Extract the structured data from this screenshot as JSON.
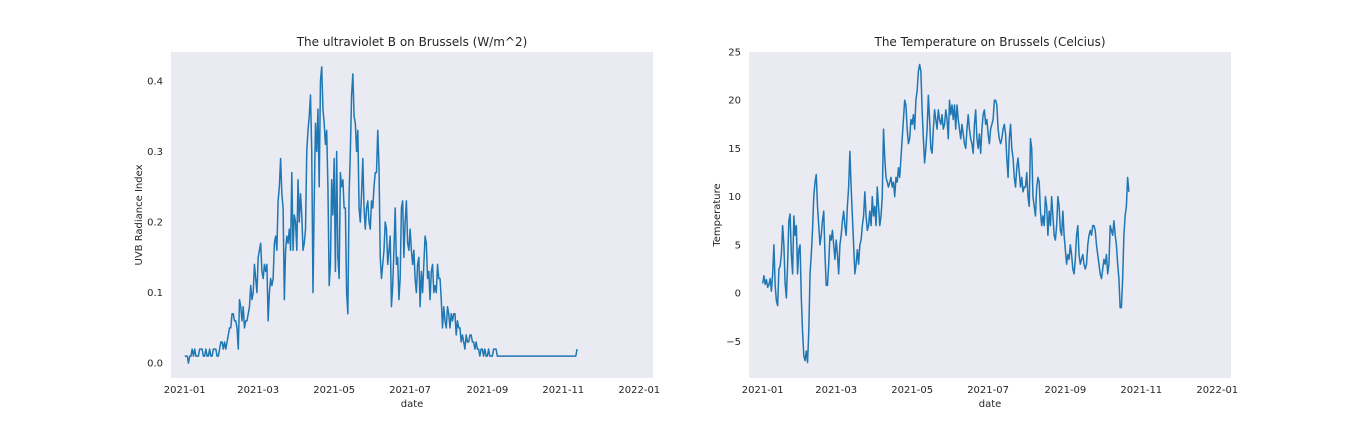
{
  "chart_data": [
    {
      "type": "line",
      "title": "The ultraviolet B on Brussels (W/m^2)",
      "xlabel": "date",
      "ylabel": "UVB Radiance Index",
      "xlim": [
        "2020-12-21",
        "2022-01-12"
      ],
      "ylim": [
        -0.021,
        0.441
      ],
      "yticks": [
        0.0,
        0.1,
        0.2,
        0.3,
        0.4
      ],
      "yticklabels": [
        "0.0",
        "0.1",
        "0.2",
        "0.3",
        "0.4"
      ],
      "xticks": [
        "2021-01-01",
        "2021-03-01",
        "2021-05-01",
        "2021-07-01",
        "2021-09-01",
        "2021-11-01",
        "2022-01-01"
      ],
      "xticklabels": [
        "2021-01",
        "2021-03",
        "2021-05",
        "2021-07",
        "2021-09",
        "2021-11",
        "2022-01"
      ],
      "grid": false,
      "color": "#1f77b4",
      "series": [
        {
          "x_start": "2021-01-01",
          "x_step_days": 1,
          "values": [
            0.01,
            0.01,
            0.01,
            0.0,
            0.01,
            0.01,
            0.02,
            0.01,
            0.02,
            0.01,
            0.01,
            0.01,
            0.02,
            0.02,
            0.02,
            0.01,
            0.01,
            0.02,
            0.01,
            0.01,
            0.02,
            0.01,
            0.01,
            0.02,
            0.02,
            0.02,
            0.01,
            0.01,
            0.02,
            0.03,
            0.03,
            0.02,
            0.03,
            0.02,
            0.03,
            0.04,
            0.05,
            0.05,
            0.07,
            0.07,
            0.06,
            0.06,
            0.05,
            0.02,
            0.09,
            0.08,
            0.06,
            0.08,
            0.05,
            0.06,
            0.06,
            0.07,
            0.08,
            0.11,
            0.09,
            0.1,
            0.14,
            0.12,
            0.1,
            0.15,
            0.16,
            0.17,
            0.13,
            0.12,
            0.14,
            0.13,
            0.14,
            0.06,
            0.1,
            0.12,
            0.11,
            0.12,
            0.17,
            0.18,
            0.16,
            0.23,
            0.25,
            0.29,
            0.24,
            0.22,
            0.09,
            0.16,
            0.18,
            0.17,
            0.19,
            0.16,
            0.27,
            0.16,
            0.21,
            0.2,
            0.16,
            0.26,
            0.2,
            0.24,
            0.21,
            0.16,
            0.17,
            0.19,
            0.3,
            0.33,
            0.35,
            0.38,
            0.3,
            0.1,
            0.23,
            0.34,
            0.3,
            0.36,
            0.25,
            0.4,
            0.42,
            0.36,
            0.34,
            0.31,
            0.33,
            0.25,
            0.11,
            0.14,
            0.26,
            0.21,
            0.29,
            0.13,
            0.3,
            0.15,
            0.12,
            0.27,
            0.25,
            0.26,
            0.22,
            0.22,
            0.1,
            0.07,
            0.24,
            0.3,
            0.38,
            0.41,
            0.35,
            0.34,
            0.3,
            0.33,
            0.22,
            0.2,
            0.24,
            0.29,
            0.22,
            0.19,
            0.22,
            0.23,
            0.2,
            0.19,
            0.23,
            0.22,
            0.25,
            0.27,
            0.27,
            0.33,
            0.28,
            0.15,
            0.12,
            0.14,
            0.16,
            0.2,
            0.19,
            0.14,
            0.16,
            0.18,
            0.08,
            0.11,
            0.16,
            0.22,
            0.14,
            0.15,
            0.09,
            0.12,
            0.22,
            0.23,
            0.15,
            0.2,
            0.23,
            0.17,
            0.16,
            0.19,
            0.16,
            0.14,
            0.16,
            0.12,
            0.1,
            0.14,
            0.15,
            0.08,
            0.13,
            0.1,
            0.14,
            0.18,
            0.17,
            0.12,
            0.13,
            0.09,
            0.13,
            0.14,
            0.1,
            0.11,
            0.1,
            0.14,
            0.12,
            0.12,
            0.09,
            0.05,
            0.08,
            0.06,
            0.05,
            0.08,
            0.07,
            0.05,
            0.07,
            0.06,
            0.07,
            0.07,
            0.04,
            0.06,
            0.05,
            0.05,
            0.03,
            0.04,
            0.03,
            0.02,
            0.04,
            0.03,
            0.03,
            0.04,
            0.04,
            0.03,
            0.03,
            0.02,
            0.03,
            0.02,
            0.02,
            0.01,
            0.02,
            0.02,
            0.01,
            0.02,
            0.01,
            0.01,
            0.02,
            0.01,
            0.01,
            0.01,
            0.02,
            0.02,
            0.02,
            0.01,
            0.01,
            0.01,
            0.01,
            0.01,
            0.01,
            0.01,
            0.01,
            0.01,
            0.01,
            0.01,
            0.01,
            0.01,
            0.01,
            0.01,
            0.01,
            0.01,
            0.01,
            0.01,
            0.01,
            0.01,
            0.01,
            0.01,
            0.01,
            0.01,
            0.01,
            0.01,
            0.01,
            0.01,
            0.01,
            0.01,
            0.01,
            0.01,
            0.01,
            0.01,
            0.01,
            0.01,
            0.01,
            0.01,
            0.01,
            0.01,
            0.01,
            0.01,
            0.01,
            0.01,
            0.01,
            0.01,
            0.01,
            0.01,
            0.01,
            0.01,
            0.01,
            0.01,
            0.01,
            0.01,
            0.01,
            0.01,
            0.01,
            0.01,
            0.01,
            0.01,
            0.01,
            0.01,
            0.01,
            0.02
          ]
        }
      ]
    },
    {
      "type": "line",
      "title": "The Temperature on Brussels (Celcius)",
      "xlabel": "date",
      "ylabel": "Temperature",
      "xlim": [
        "2020-12-21",
        "2022-01-12"
      ],
      "ylim": [
        -8.8,
        25.0
      ],
      "yticks": [
        -5,
        0,
        5,
        10,
        15,
        20,
        25
      ],
      "yticklabels": [
        "−5",
        "0",
        "5",
        "10",
        "15",
        "20",
        "25"
      ],
      "xticks": [
        "2021-01-01",
        "2021-03-01",
        "2021-05-01",
        "2021-07-01",
        "2021-09-01",
        "2021-11-01",
        "2022-01-01"
      ],
      "xticklabels": [
        "2021-01",
        "2021-03",
        "2021-05",
        "2021-07",
        "2021-09",
        "2021-11",
        "2022-01"
      ],
      "grid": false,
      "color": "#1f77b4",
      "series": [
        {
          "x_start": "2021-01-01",
          "x_step_days": 1,
          "values": [
            1.0,
            1.8,
            0.9,
            1.4,
            0.6,
            0.9,
            1.5,
            0.2,
            2.0,
            5.0,
            0.8,
            -0.8,
            -1.3,
            2.5,
            2.8,
            4.0,
            7.0,
            5.0,
            1.0,
            -0.5,
            3.0,
            7.5,
            8.2,
            4.0,
            2.0,
            8.0,
            6.0,
            7.0,
            2.0,
            4.5,
            5.0,
            -0.5,
            -4.0,
            -6.5,
            -7.0,
            -6.0,
            -7.2,
            -4.0,
            2.0,
            4.0,
            6.5,
            10.0,
            11.5,
            12.3,
            9.0,
            7.0,
            5.0,
            6.0,
            7.5,
            8.5,
            4.0,
            0.8,
            0.8,
            3.0,
            6.0,
            5.5,
            6.5,
            5.0,
            3.5,
            5.5,
            4.0,
            2.0,
            5.0,
            6.0,
            7.5,
            8.5,
            7.0,
            6.0,
            9.0,
            11.0,
            14.7,
            11.0,
            8.0,
            5.0,
            2.0,
            3.0,
            4.5,
            3.0,
            5.0,
            5.5,
            7.0,
            8.0,
            10.5,
            8.0,
            6.5,
            7.0,
            8.5,
            7.0,
            10.0,
            8.0,
            9.0,
            7.0,
            11.0,
            9.0,
            7.0,
            8.0,
            10.0,
            17.0,
            14.0,
            12.0,
            11.5,
            11.0,
            11.5,
            12.0,
            11.0,
            11.5,
            10.0,
            12.0,
            11.5,
            13.0,
            12.0,
            14.0,
            16.0,
            18.0,
            20.0,
            19.5,
            17.0,
            15.5,
            16.0,
            18.0,
            17.5,
            18.5,
            17.0,
            20.0,
            21.0,
            23.0,
            23.7,
            23.0,
            19.0,
            16.0,
            13.5,
            15.0,
            17.0,
            20.5,
            18.0,
            15.0,
            14.5,
            17.0,
            19.0,
            18.0,
            17.0,
            19.0,
            18.0,
            17.5,
            18.5,
            17.0,
            17.5,
            19.0,
            18.0,
            16.0,
            20.0,
            18.5,
            19.5,
            18.0,
            19.5,
            17.0,
            19.5,
            18.0,
            17.0,
            16.0,
            17.5,
            16.5,
            15.5,
            15.0,
            17.0,
            18.5,
            17.0,
            16.0,
            15.5,
            14.5,
            17.5,
            19.0,
            16.0,
            15.0,
            16.5,
            14.5,
            17.0,
            18.5,
            19.0,
            17.5,
            18.0,
            16.5,
            15.5,
            17.0,
            17.5,
            18.0,
            20.0,
            20.0,
            19.5,
            17.0,
            16.0,
            15.5,
            16.0,
            17.0,
            17.5,
            16.5,
            14.0,
            12.0,
            16.0,
            17.5,
            15.0,
            14.0,
            12.0,
            11.0,
            13.0,
            14.0,
            12.5,
            11.0,
            12.0,
            10.5,
            11.0,
            11.0,
            12.5,
            10.0,
            9.0,
            16.0,
            15.0,
            10.0,
            9.0,
            8.0,
            11.0,
            12.0,
            11.5,
            8.5,
            7.0,
            8.0,
            7.0,
            10.0,
            9.0,
            6.0,
            8.5,
            7.0,
            10.0,
            8.0,
            6.0,
            5.5,
            7.0,
            10.0,
            9.0,
            6.5,
            6.0,
            8.5,
            6.0,
            4.5,
            3.0,
            4.0,
            3.5,
            5.0,
            4.0,
            2.5,
            2.0,
            3.5,
            6.0,
            7.0,
            4.0,
            3.0,
            3.5,
            4.0,
            3.0,
            2.5,
            3.0,
            5.0,
            6.0,
            6.5,
            6.0,
            7.0,
            7.0,
            6.5,
            5.0,
            4.0,
            3.0,
            2.0,
            1.5,
            2.5,
            3.5,
            3.0,
            4.0,
            2.0,
            3.0,
            7.0,
            6.5,
            6.0,
            7.5,
            6.0,
            5.0,
            3.0,
            1.5,
            -1.5,
            -1.5,
            1.5,
            6.0,
            8.0,
            9.0,
            12.0,
            10.5
          ]
        }
      ]
    }
  ]
}
